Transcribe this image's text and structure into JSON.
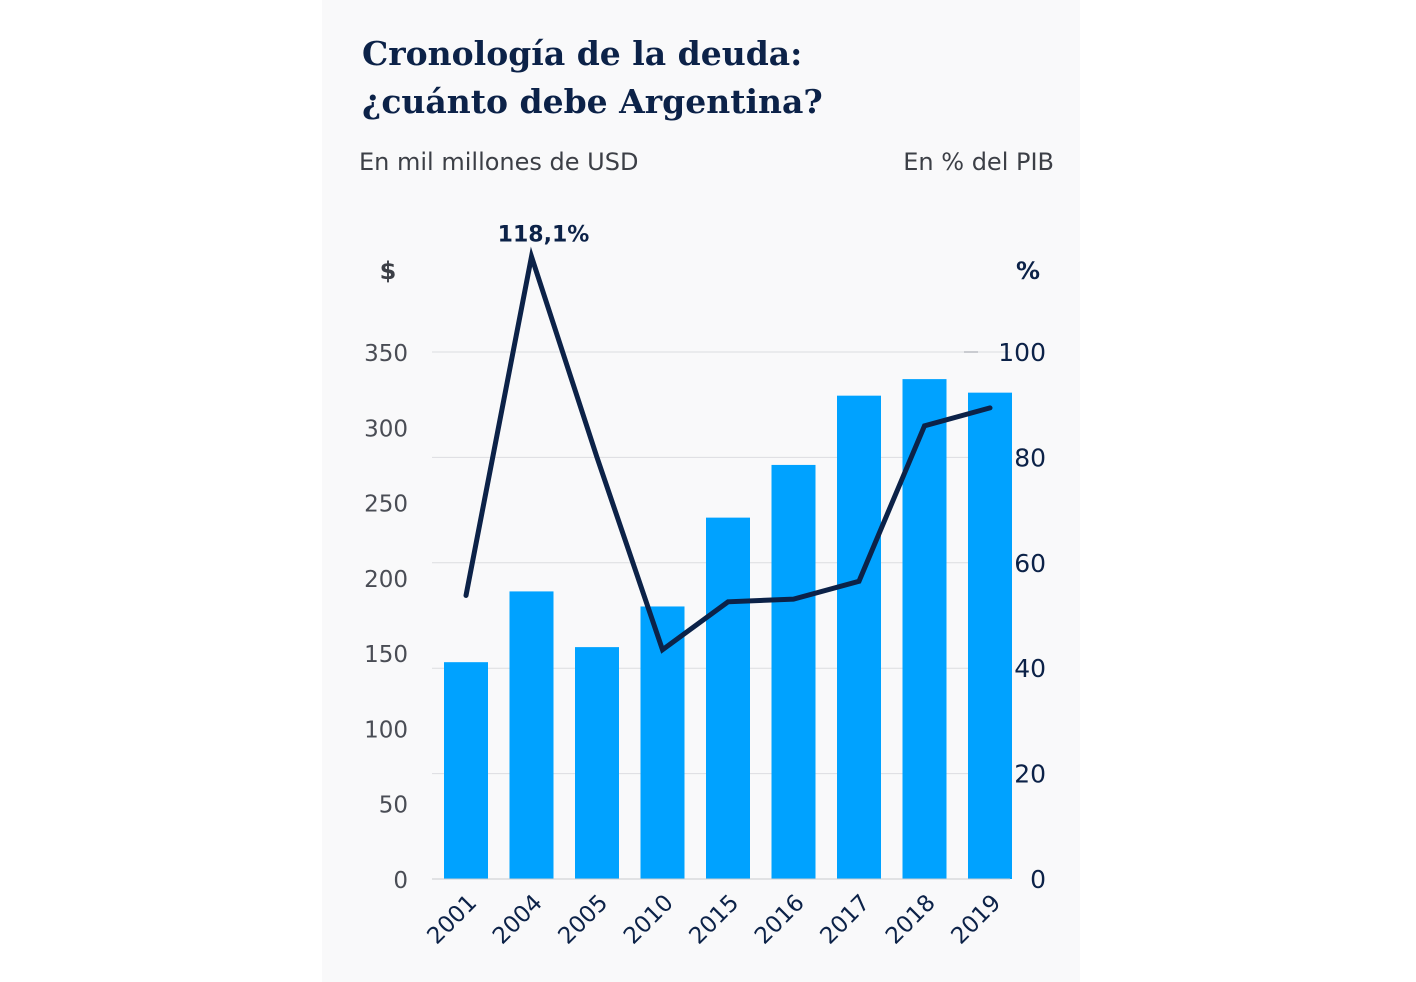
{
  "title_lines": [
    "Cronología de la deuda:",
    "¿cuánto debe Argentina?"
  ],
  "subtitle_left": "En mil millones de USD",
  "subtitle_right": "En % del PIB",
  "chart_data": {
    "type": "bar",
    "categories": [
      "2001",
      "2004",
      "2005",
      "2010",
      "2015",
      "2016",
      "2017",
      "2018",
      "2019"
    ],
    "series": [
      {
        "type": "bar",
        "axis": "left",
        "color": "#00a2ff",
        "values": [
          144,
          191,
          154,
          181,
          240,
          275,
          321,
          332,
          323
        ]
      },
      {
        "type": "line",
        "axis": "right",
        "color": "#0c2248",
        "values": [
          53.8,
          118.1,
          80.0,
          43.5,
          52.6,
          53.1,
          56.5,
          86.0,
          89.4
        ]
      }
    ],
    "left_unit": "$",
    "right_unit": "%",
    "left_ylim": [
      0,
      350
    ],
    "left_ticks": [
      0,
      50,
      100,
      150,
      200,
      250,
      300,
      350
    ],
    "right_ylim": [
      0,
      100
    ],
    "right_ticks": [
      0,
      20,
      40,
      60,
      80,
      100
    ],
    "annotation": {
      "category": "2004",
      "text": "118,1%"
    },
    "grid": true
  }
}
